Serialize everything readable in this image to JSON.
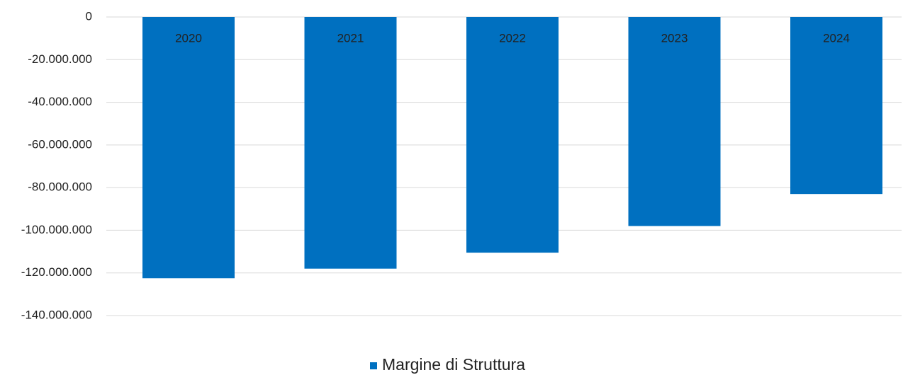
{
  "chart_data": {
    "type": "bar",
    "categories": [
      "2020",
      "2021",
      "2022",
      "2023",
      "2024"
    ],
    "series": [
      {
        "name": "Margine di Struttura",
        "color": "#0070c0",
        "values": [
          -122500000,
          -118000000,
          -110500000,
          -98000000,
          -83000000
        ]
      }
    ],
    "ylim": [
      -140000000,
      0
    ],
    "yticks": [
      0,
      {
        "value": -20000000,
        "label": "-20.000.000"
      },
      {
        "value": -40000000,
        "label": "-40.000.000"
      },
      {
        "value": -60000000,
        "label": "-60.000.000"
      },
      {
        "value": -80000000,
        "label": "-80.000.000"
      },
      {
        "value": -100000000,
        "label": "-100.000.000"
      },
      {
        "value": -120000000,
        "label": "-120.000.000"
      },
      {
        "value": -140000000,
        "label": "-140.000.000"
      }
    ],
    "grid": true,
    "legend": "bottom"
  }
}
